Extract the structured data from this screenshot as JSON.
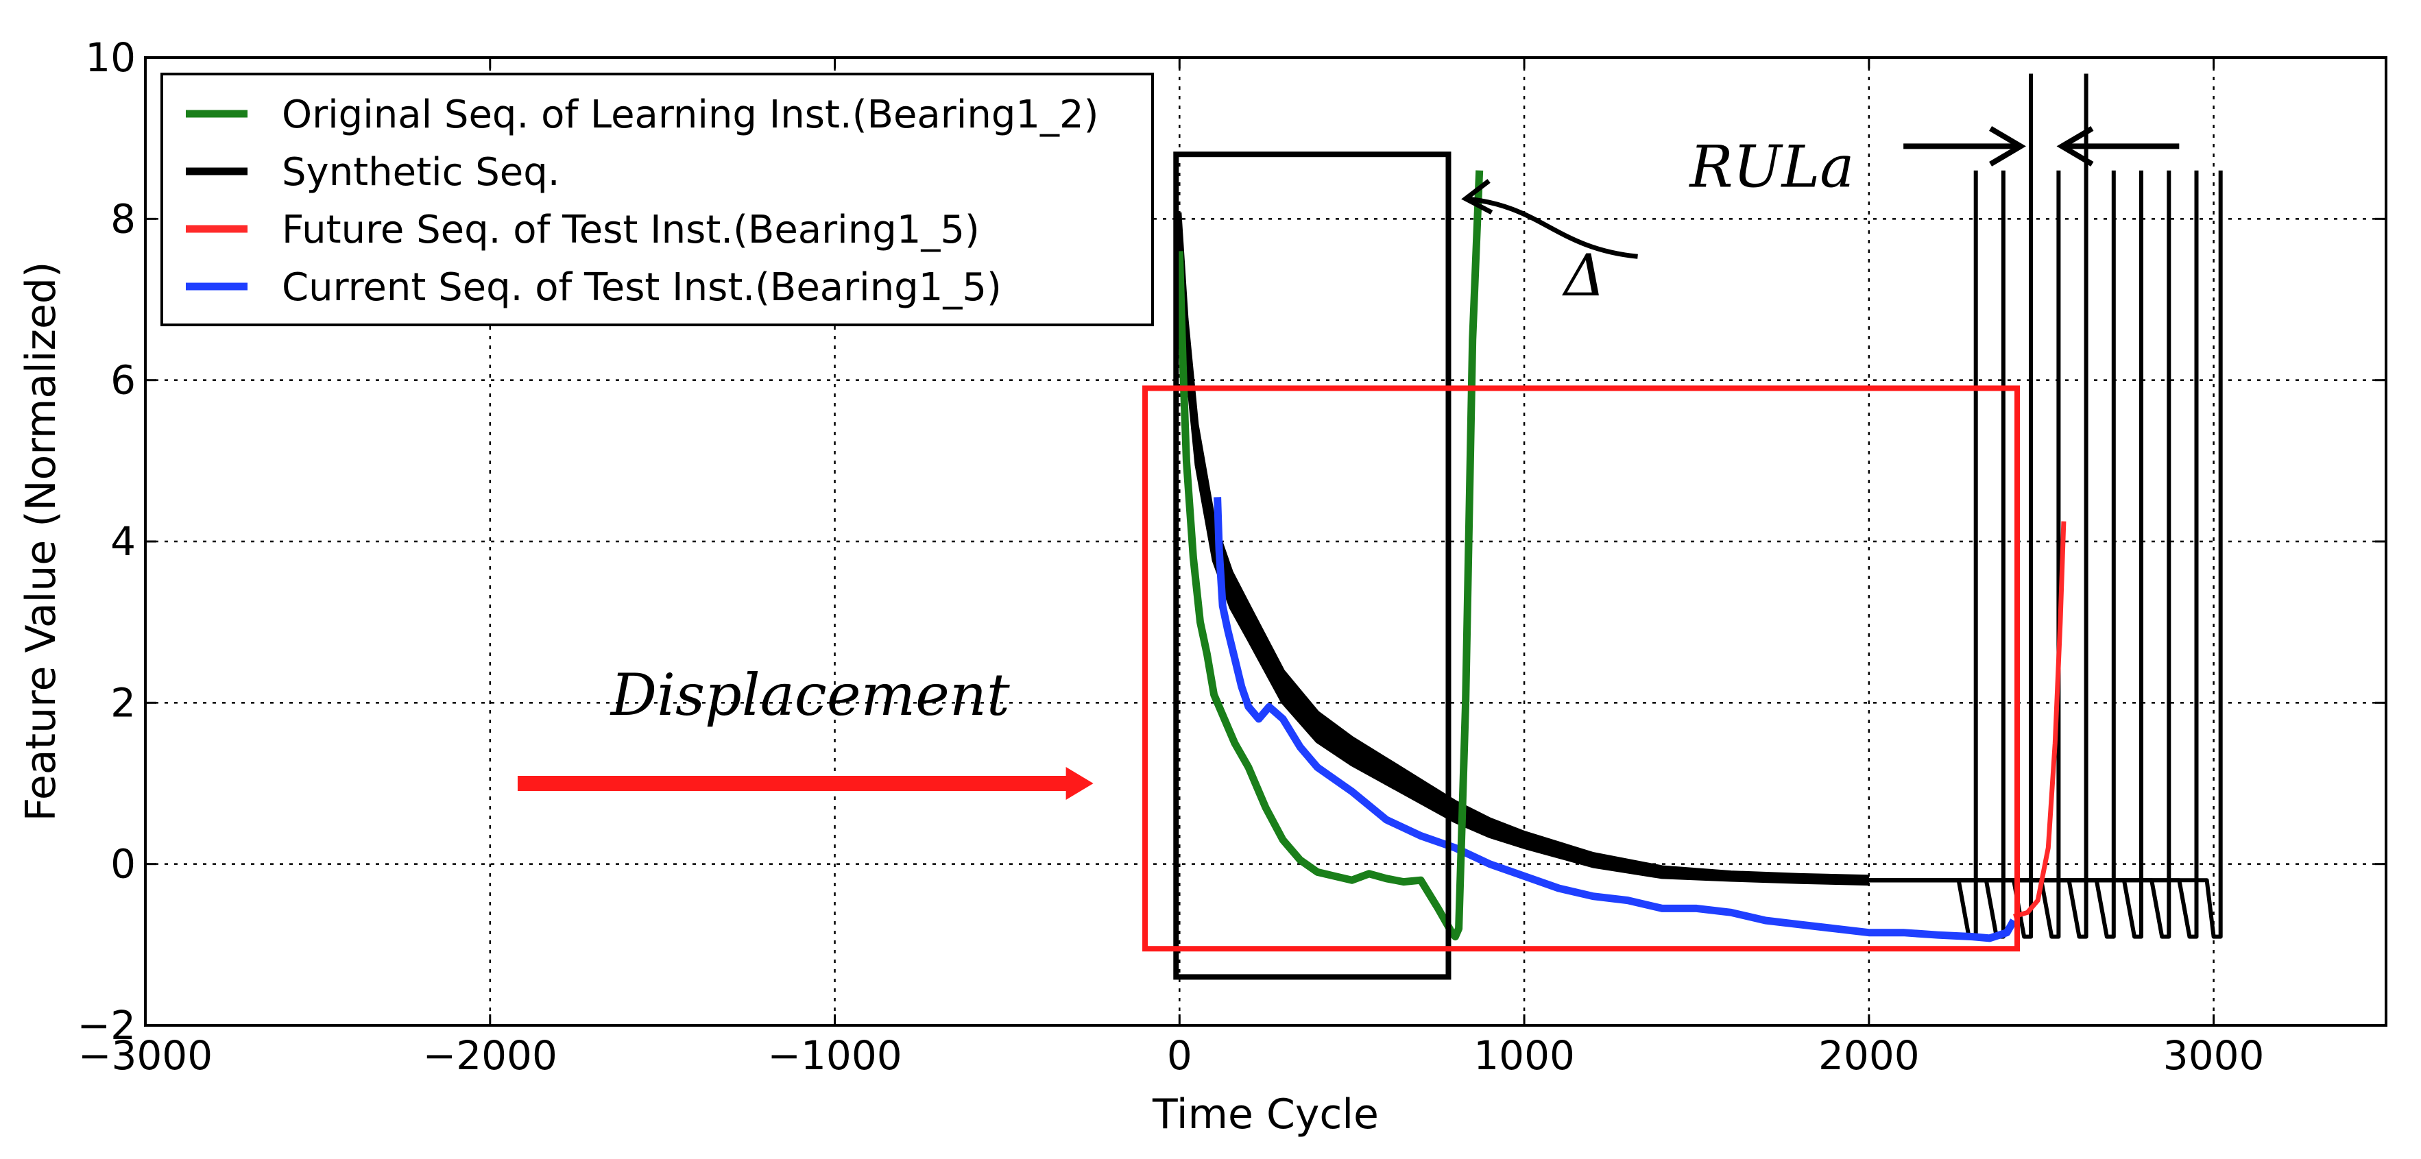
{
  "chart_data": {
    "type": "line",
    "xlabel": "Time Cycle",
    "ylabel": "Feature Value (Normalized)",
    "xlim": [
      -3000,
      3500
    ],
    "ylim": [
      -2,
      10
    ],
    "grid": true,
    "xticks": [
      -3000,
      -2000,
      -1000,
      0,
      1000,
      2000,
      3000
    ],
    "xtick_labels": [
      "−3000",
      "−2000",
      "−1000",
      "0",
      "1000",
      "2000",
      "3000"
    ],
    "yticks": [
      -2,
      0,
      2,
      4,
      6,
      8,
      10
    ],
    "ytick_labels": [
      "−2",
      "0",
      "2",
      "4",
      "6",
      "8",
      "10"
    ],
    "legend_position": "top-left",
    "series": [
      {
        "name": "Original Seq. of Learning Inst.(Bearing1_2)",
        "color": "#1a7f1a",
        "x": [
          0,
          10,
          20,
          40,
          60,
          80,
          100,
          130,
          160,
          200,
          250,
          300,
          350,
          400,
          450,
          500,
          550,
          600,
          650,
          700,
          750,
          790,
          800,
          810,
          830,
          850,
          870
        ],
        "y": [
          7.6,
          6.2,
          5.0,
          3.8,
          3.0,
          2.6,
          2.1,
          1.8,
          1.5,
          1.2,
          0.7,
          0.3,
          0.05,
          -0.1,
          -0.15,
          -0.2,
          -0.12,
          -0.18,
          -0.22,
          -0.2,
          -0.55,
          -0.85,
          -0.9,
          -0.8,
          2.0,
          6.5,
          8.6
        ]
      },
      {
        "name": "Synthetic Seq.",
        "color": "#000000",
        "x": [
          0,
          20,
          50,
          100,
          150,
          200,
          300,
          400,
          500,
          600,
          700,
          800,
          900,
          1000,
          1200,
          1400,
          1600,
          1800,
          2000
        ],
        "y": [
          7.8,
          6.5,
          5.2,
          4.0,
          3.4,
          3.0,
          2.2,
          1.7,
          1.4,
          1.15,
          0.9,
          0.65,
          0.45,
          0.3,
          0.05,
          -0.1,
          -0.15,
          -0.18,
          -0.2
        ],
        "band_halfwidth": 0.28,
        "ending_knee_x": [
          2260,
          2340,
          2420,
          2500,
          2580,
          2660,
          2740,
          2820,
          2900,
          2980
        ],
        "ending_spike_x": [
          2310,
          2390,
          2470,
          2550,
          2630,
          2710,
          2790,
          2870,
          2950,
          3020
        ],
        "ending_spike_top_y": [
          8.6,
          8.6,
          9.8,
          8.6,
          9.8,
          8.6,
          8.6,
          8.6,
          8.6,
          8.6
        ],
        "ending_min_y": -0.9
      },
      {
        "name": "Future Seq. of Test Inst.(Bearing1_5)",
        "color": "#ff2a2a",
        "x": [
          2420,
          2460,
          2490,
          2520,
          2540,
          2555,
          2565
        ],
        "y": [
          -0.65,
          -0.6,
          -0.45,
          0.2,
          1.5,
          3.0,
          4.25
        ]
      },
      {
        "name": "Current Seq. of Test Inst.(Bearing1_5)",
        "color": "#1f3fff",
        "x": [
          110,
          115,
          125,
          140,
          160,
          180,
          200,
          230,
          260,
          300,
          350,
          400,
          500,
          600,
          700,
          800,
          900,
          1000,
          1100,
          1200,
          1300,
          1400,
          1500,
          1600,
          1700,
          1800,
          1900,
          2000,
          2100,
          2200,
          2300,
          2350,
          2400,
          2420
        ],
        "y": [
          4.55,
          3.9,
          3.2,
          2.9,
          2.55,
          2.2,
          1.95,
          1.8,
          1.95,
          1.8,
          1.45,
          1.2,
          0.9,
          0.55,
          0.35,
          0.2,
          0.0,
          -0.15,
          -0.3,
          -0.4,
          -0.45,
          -0.55,
          -0.55,
          -0.6,
          -0.7,
          -0.75,
          -0.8,
          -0.85,
          -0.85,
          -0.88,
          -0.9,
          -0.92,
          -0.85,
          -0.7
        ]
      }
    ],
    "annotations": {
      "displacement": {
        "text": "Displacement",
        "arrow_from": [
          -1920,
          1.0
        ],
        "arrow_to": [
          -250,
          1.0
        ]
      },
      "rula": {
        "text": "RULa",
        "left_arrow_from": [
          2100,
          8.9
        ],
        "left_arrow_to": [
          2440,
          8.9
        ],
        "right_arrow_from": [
          2900,
          8.9
        ],
        "right_arrow_to": [
          2560,
          8.9
        ]
      },
      "delta": {
        "text": "Δ",
        "anchor": [
          1170,
          7.55
        ],
        "arrow_to": [
          830,
          8.25
        ]
      },
      "black_box": {
        "x0": -10,
        "x1": 780,
        "y0": -1.4,
        "y1": 8.8
      },
      "red_box": {
        "x0": -100,
        "x1": 2430,
        "y0": -1.05,
        "y1": 5.9
      }
    }
  }
}
